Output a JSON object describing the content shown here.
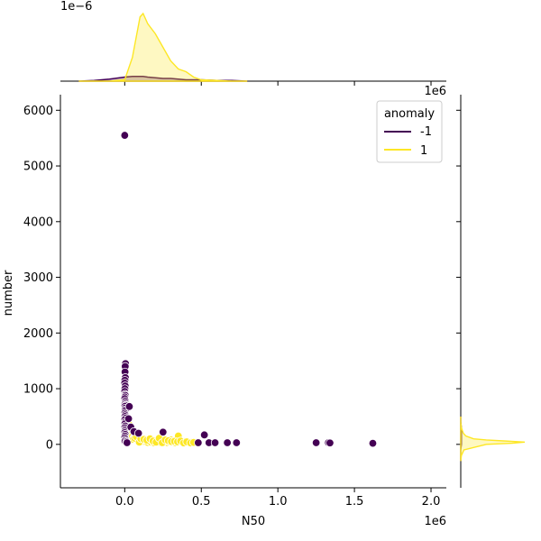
{
  "chart_data": {
    "type": "scatter",
    "subtype": "jointplot",
    "xlabel": "N50",
    "ylabel": "number",
    "x_offset_text": "1e6",
    "y_offset_text": "",
    "top_marginal_offset_text": "1e−6",
    "right_marginal_offset_text": "1e6",
    "xlim": [
      -420000,
      2100000
    ],
    "ylim": [
      -780,
      6280
    ],
    "x_ticks": [
      0,
      500000,
      1000000,
      1500000,
      2000000
    ],
    "x_tick_labels": [
      "0.0",
      "0.5",
      "1.0",
      "1.5",
      "2.0"
    ],
    "y_ticks": [
      0,
      1000,
      2000,
      3000,
      4000,
      5000,
      6000
    ],
    "y_tick_labels": [
      "0",
      "1000",
      "2000",
      "3000",
      "4000",
      "5000",
      "6000"
    ],
    "legend": {
      "title": "anomaly",
      "placement": "top-right",
      "entries": [
        {
          "label": "-1",
          "color": "#440154"
        },
        {
          "label": "1",
          "color": "#fde725"
        }
      ]
    },
    "series": [
      {
        "name": "-1",
        "color": "#440154",
        "points": [
          [
            0,
            5550
          ],
          [
            5000,
            1450
          ],
          [
            3000,
            1400
          ],
          [
            2000,
            1300
          ],
          [
            4000,
            1200
          ],
          [
            1000,
            1150
          ],
          [
            0,
            1100
          ],
          [
            3000,
            1050
          ],
          [
            1000,
            1000
          ],
          [
            0,
            950
          ],
          [
            2000,
            900
          ],
          [
            4000,
            880
          ],
          [
            1000,
            850
          ],
          [
            0,
            820
          ],
          [
            3000,
            780
          ],
          [
            2000,
            750
          ],
          [
            1000,
            720
          ],
          [
            5000,
            700
          ],
          [
            0,
            680
          ],
          [
            2000,
            650
          ],
          [
            1000,
            620
          ],
          [
            3000,
            600
          ],
          [
            0,
            560
          ],
          [
            2000,
            530
          ],
          [
            1000,
            500
          ],
          [
            4000,
            470
          ],
          [
            0,
            440
          ],
          [
            2000,
            400
          ],
          [
            1000,
            370
          ],
          [
            3000,
            330
          ],
          [
            0,
            300
          ],
          [
            2000,
            270
          ],
          [
            1000,
            240
          ],
          [
            0,
            210
          ],
          [
            3000,
            180
          ],
          [
            1000,
            150
          ],
          [
            0,
            120
          ],
          [
            4000,
            90
          ],
          [
            2000,
            60
          ],
          [
            25000,
            460
          ],
          [
            30000,
            680
          ],
          [
            12000,
            50
          ],
          [
            15000,
            30
          ],
          [
            40000,
            310
          ],
          [
            60000,
            230
          ],
          [
            90000,
            200
          ],
          [
            250000,
            220
          ],
          [
            520000,
            170
          ],
          [
            480000,
            30
          ],
          [
            550000,
            30
          ],
          [
            590000,
            30
          ],
          [
            670000,
            30
          ],
          [
            730000,
            30
          ],
          [
            1250000,
            30
          ],
          [
            1330000,
            30
          ],
          [
            1340000,
            25
          ],
          [
            1620000,
            20
          ]
        ]
      },
      {
        "name": "1",
        "color": "#fde725",
        "points": [
          [
            15000,
            450
          ],
          [
            20000,
            400
          ],
          [
            25000,
            380
          ],
          [
            30000,
            350
          ],
          [
            18000,
            320
          ],
          [
            10000,
            300
          ],
          [
            22000,
            270
          ],
          [
            35000,
            250
          ],
          [
            28000,
            220
          ],
          [
            40000,
            200
          ],
          [
            15000,
            180
          ],
          [
            50000,
            160
          ],
          [
            45000,
            130
          ],
          [
            60000,
            120
          ],
          [
            70000,
            100
          ],
          [
            55000,
            90
          ],
          [
            80000,
            80
          ],
          [
            90000,
            70
          ],
          [
            100000,
            60
          ],
          [
            110000,
            55
          ],
          [
            120000,
            50
          ],
          [
            130000,
            45
          ],
          [
            140000,
            40
          ],
          [
            150000,
            35
          ],
          [
            160000,
            60
          ],
          [
            170000,
            40
          ],
          [
            180000,
            80
          ],
          [
            190000,
            30
          ],
          [
            200000,
            55
          ],
          [
            210000,
            70
          ],
          [
            220000,
            45
          ],
          [
            230000,
            35
          ],
          [
            240000,
            90
          ],
          [
            250000,
            60
          ],
          [
            260000,
            50
          ],
          [
            270000,
            40
          ],
          [
            280000,
            30
          ],
          [
            290000,
            45
          ],
          [
            300000,
            80
          ],
          [
            310000,
            35
          ],
          [
            320000,
            40
          ],
          [
            330000,
            30
          ],
          [
            340000,
            60
          ],
          [
            350000,
            150
          ],
          [
            360000,
            40
          ],
          [
            370000,
            35
          ],
          [
            380000,
            30
          ],
          [
            390000,
            50
          ],
          [
            400000,
            35
          ],
          [
            420000,
            30
          ],
          [
            440000,
            40
          ],
          [
            460000,
            30
          ],
          [
            85000,
            150
          ],
          [
            65000,
            110
          ],
          [
            75000,
            140
          ],
          [
            95000,
            40
          ],
          [
            105000,
            100
          ],
          [
            125000,
            90
          ],
          [
            145000,
            75
          ],
          [
            165000,
            100
          ],
          [
            185000,
            60
          ],
          [
            205000,
            40
          ],
          [
            225000,
            110
          ],
          [
            245000,
            30
          ],
          [
            265000,
            80
          ],
          [
            285000,
            65
          ],
          [
            305000,
            50
          ],
          [
            325000,
            55
          ],
          [
            345000,
            45
          ],
          [
            365000,
            60
          ],
          [
            385000,
            25
          ],
          [
            405000,
            45
          ],
          [
            430000,
            25
          ],
          [
            450000,
            35
          ],
          [
            1340000,
            30
          ]
        ]
      }
    ],
    "top_marginal": {
      "x": [
        -300000,
        -200000,
        -100000,
        0,
        50000,
        100000,
        120000,
        150000,
        200000,
        250000,
        300000,
        350000,
        400000,
        450000,
        500000,
        600000,
        700000,
        800000
      ],
      "series": [
        {
          "name": "-1",
          "color": "#440154",
          "density": [
            0.0,
            0.01,
            0.03,
            0.06,
            0.07,
            0.07,
            0.07,
            0.06,
            0.05,
            0.04,
            0.04,
            0.03,
            0.02,
            0.02,
            0.02,
            0.01,
            0.01,
            0.0
          ]
        },
        {
          "name": "1",
          "color": "#fde725",
          "density": [
            0.0,
            0.0,
            0.0,
            0.02,
            0.35,
            0.95,
            1.0,
            0.85,
            0.7,
            0.5,
            0.3,
            0.18,
            0.14,
            0.06,
            0.02,
            0.01,
            0.0,
            0.0
          ]
        }
      ]
    },
    "right_marginal": {
      "y": [
        -300,
        -200,
        -100,
        0,
        20,
        40,
        60,
        80,
        100,
        150,
        200,
        300,
        400,
        500
      ],
      "series": [
        {
          "name": "-1",
          "color": "#440154",
          "density": [
            0.0,
            0.0,
            0.0,
            0.01,
            0.01,
            0.01,
            0.01,
            0.01,
            0.01,
            0.01,
            0.01,
            0.01,
            0.0,
            0.0
          ]
        },
        {
          "name": "1",
          "color": "#fde725",
          "density": [
            0.0,
            0.01,
            0.05,
            0.4,
            0.8,
            1.0,
            0.7,
            0.4,
            0.2,
            0.08,
            0.04,
            0.01,
            0.0,
            0.0
          ]
        }
      ]
    }
  }
}
